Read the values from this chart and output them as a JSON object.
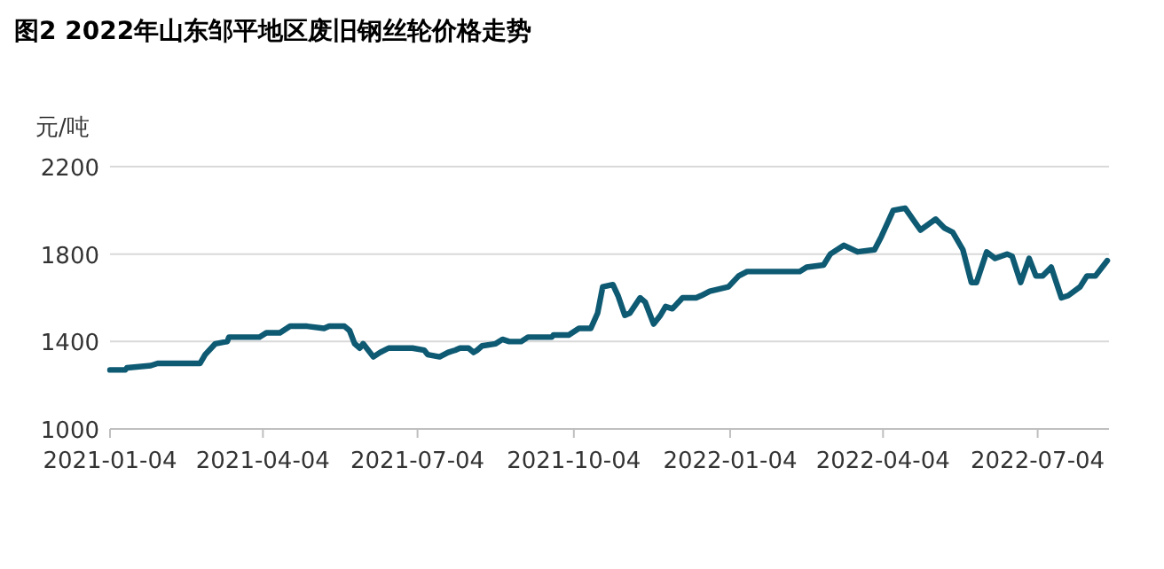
{
  "chart_data": {
    "type": "line",
    "title": "图2 2022年山东邹平地区废旧钢丝轮价格走势",
    "ylabel": "元/吨",
    "xlim": [
      "2021-01-04",
      "2022-08-15"
    ],
    "xticks": [
      "2021-01-04",
      "2021-04-04",
      "2021-07-04",
      "2021-10-04",
      "2022-01-04",
      "2022-04-04",
      "2022-07-04"
    ],
    "ylim": [
      1000,
      2200
    ],
    "yticks": [
      1000,
      1400,
      1800,
      2200
    ],
    "grid": "y",
    "marker": "none",
    "line_style": "solid",
    "series": [
      {
        "color": "#0e5a73",
        "x": [
          "2021-01-04",
          "2021-01-13",
          "2021-01-14",
          "2021-01-28",
          "2021-02-01",
          "2021-02-26",
          "2021-03-01",
          "2021-03-07",
          "2021-03-14",
          "2021-03-15",
          "2021-04-02",
          "2021-04-06",
          "2021-04-14",
          "2021-04-20",
          "2021-04-25",
          "2021-04-30",
          "2021-05-10",
          "2021-05-13",
          "2021-05-22",
          "2021-05-25",
          "2021-05-28",
          "2021-05-31",
          "2021-06-02",
          "2021-06-08",
          "2021-06-12",
          "2021-06-17",
          "2021-07-01",
          "2021-07-08",
          "2021-07-10",
          "2021-07-17",
          "2021-07-22",
          "2021-07-26",
          "2021-07-29",
          "2021-08-03",
          "2021-08-06",
          "2021-08-08",
          "2021-08-11",
          "2021-08-19",
          "2021-08-23",
          "2021-08-27",
          "2021-09-03",
          "2021-09-07",
          "2021-09-21",
          "2021-09-22",
          "2021-10-01",
          "2021-10-07",
          "2021-10-14",
          "2021-10-18",
          "2021-10-21",
          "2021-10-27",
          "2021-10-30",
          "2021-11-03",
          "2021-11-06",
          "2021-11-12",
          "2021-11-15",
          "2021-11-20",
          "2021-11-24",
          "2021-11-27",
          "2021-12-01",
          "2021-12-07",
          "2021-12-15",
          "2021-12-18",
          "2021-12-23",
          "2022-01-03",
          "2022-01-09",
          "2022-01-14",
          "2022-02-14",
          "2022-02-18",
          "2022-02-28",
          "2022-03-04",
          "2022-03-12",
          "2022-03-20",
          "2022-03-30",
          "2022-04-03",
          "2022-04-10",
          "2022-04-17",
          "2022-04-26",
          "2022-05-05",
          "2022-05-10",
          "2022-05-15",
          "2022-05-21",
          "2022-05-26",
          "2022-05-29",
          "2022-06-04",
          "2022-06-09",
          "2022-06-16",
          "2022-06-19",
          "2022-06-24",
          "2022-06-29",
          "2022-07-03",
          "2022-07-07",
          "2022-07-12",
          "2022-07-18",
          "2022-07-22",
          "2022-07-29",
          "2022-08-02",
          "2022-08-07",
          "2022-08-14"
        ],
        "values": [
          1270,
          1270,
          1280,
          1290,
          1300,
          1300,
          1340,
          1390,
          1400,
          1420,
          1420,
          1440,
          1440,
          1470,
          1470,
          1470,
          1460,
          1470,
          1470,
          1450,
          1390,
          1370,
          1390,
          1330,
          1350,
          1370,
          1370,
          1360,
          1340,
          1330,
          1350,
          1360,
          1370,
          1370,
          1350,
          1360,
          1380,
          1390,
          1410,
          1400,
          1400,
          1420,
          1420,
          1430,
          1430,
          1460,
          1460,
          1530,
          1650,
          1660,
          1610,
          1520,
          1530,
          1600,
          1580,
          1480,
          1520,
          1560,
          1550,
          1600,
          1600,
          1610,
          1630,
          1650,
          1700,
          1720,
          1720,
          1740,
          1750,
          1800,
          1840,
          1810,
          1820,
          1880,
          2000,
          2010,
          1910,
          1960,
          1920,
          1900,
          1820,
          1670,
          1670,
          1810,
          1780,
          1800,
          1790,
          1670,
          1780,
          1700,
          1700,
          1740,
          1600,
          1610,
          1650,
          1700,
          1700,
          1770
        ]
      }
    ]
  }
}
